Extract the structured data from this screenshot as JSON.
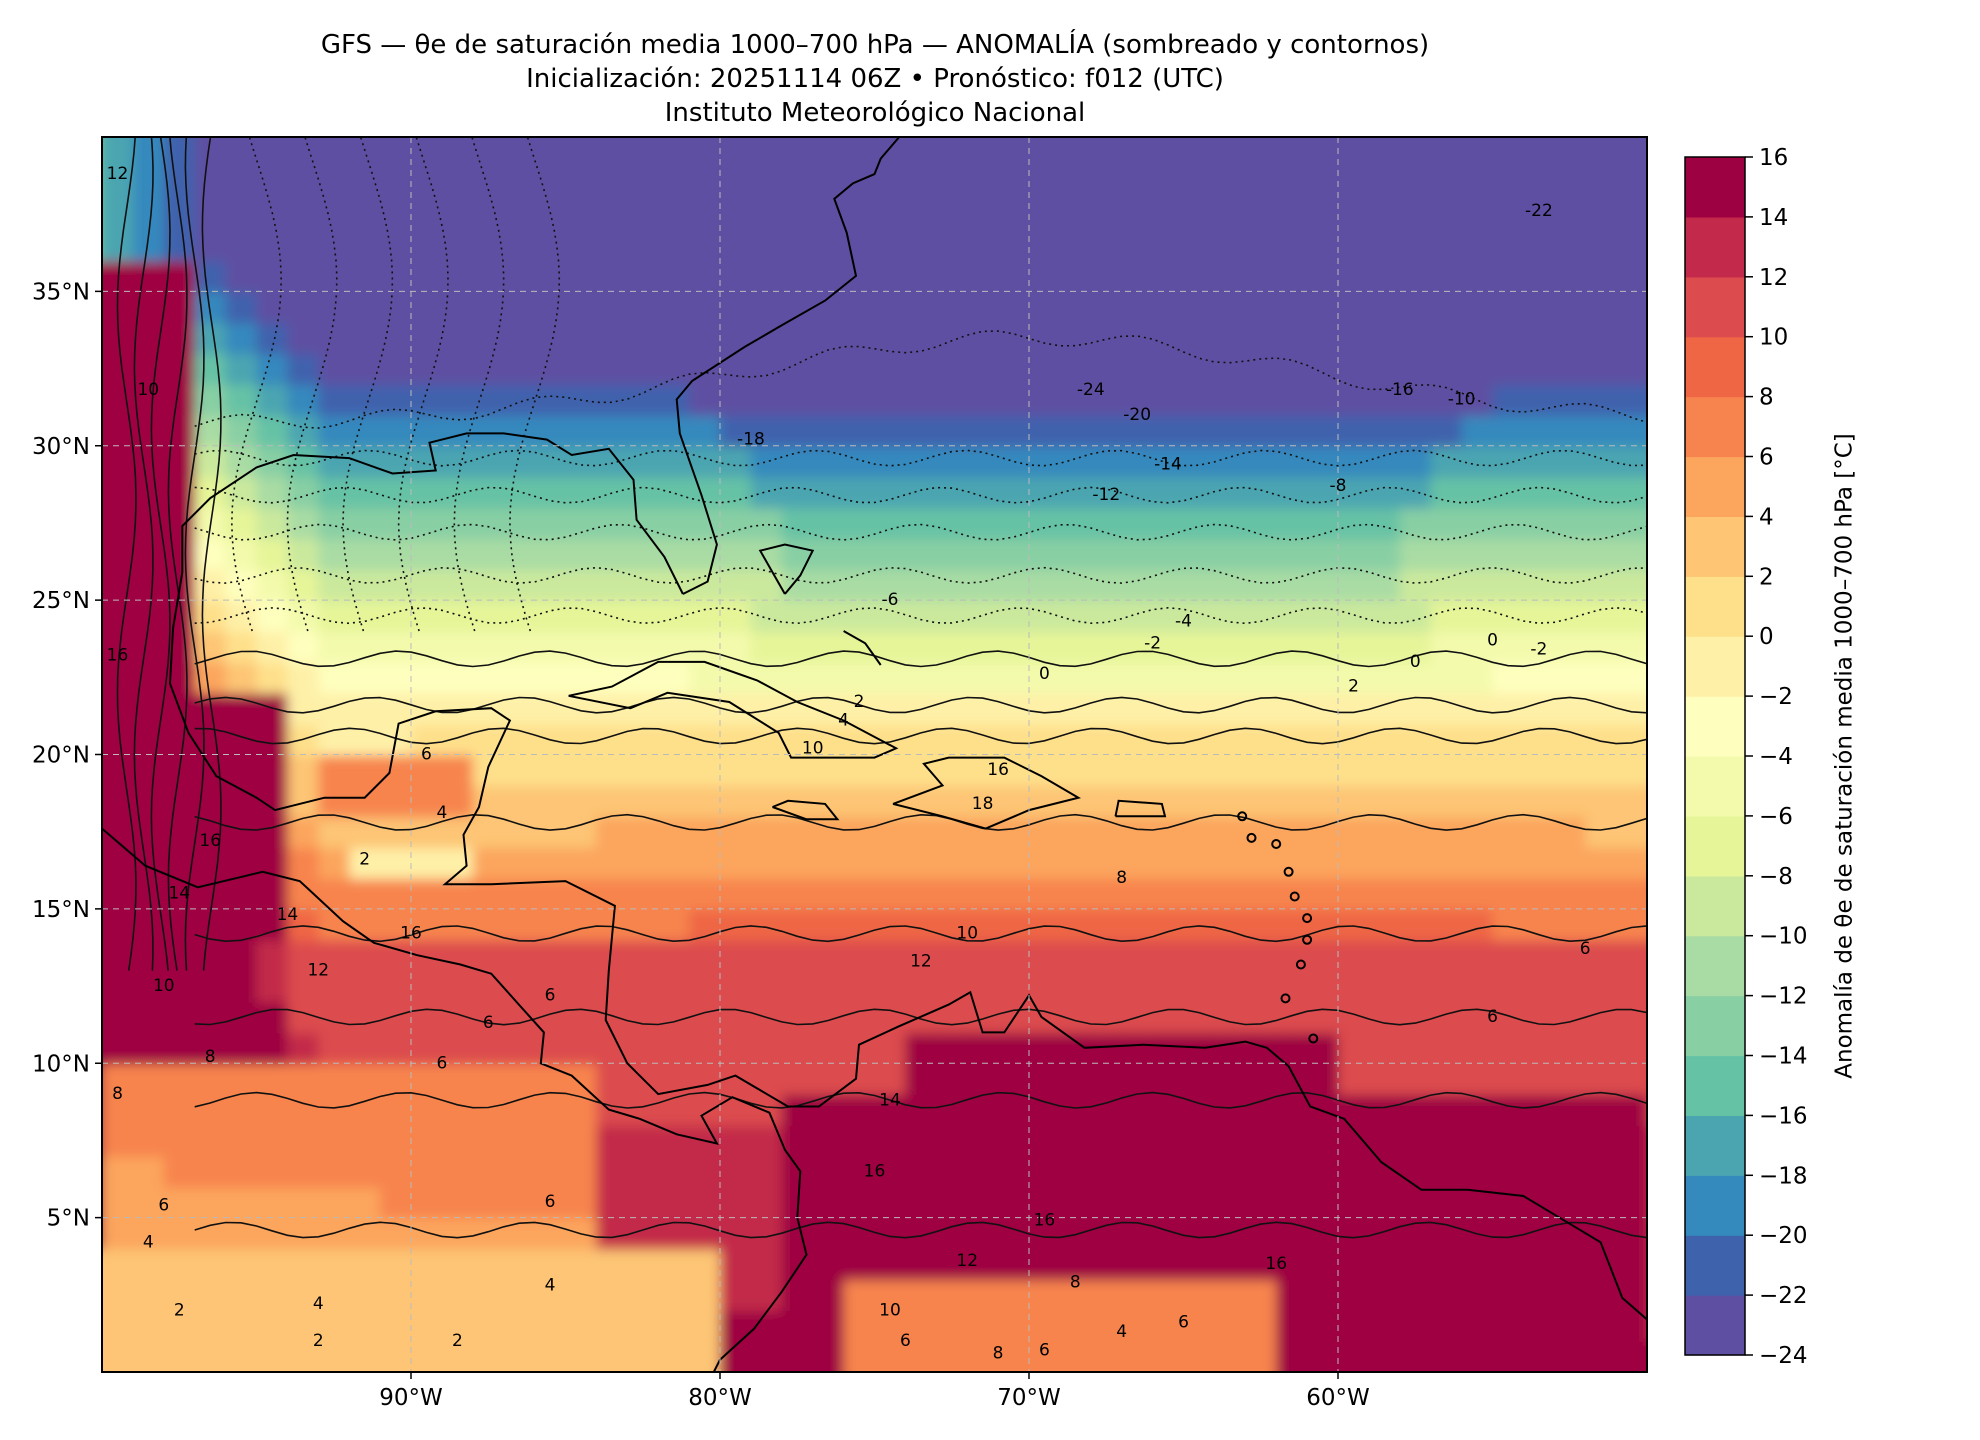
{
  "title": {
    "line1": "GFS — θe de saturación media 1000–700 hPa — ANOMALÍA (sombreado y contornos)",
    "line2": "Inicialización: 20251114 06Z   •   Pronóstico: f012 (UTC)",
    "line3": "Instituto Meteorológico Nacional"
  },
  "map": {
    "lon_range": [
      -100,
      -50
    ],
    "lat_range": [
      0,
      40
    ],
    "lon_ticks": [
      {
        "value": -90,
        "label": "90°W"
      },
      {
        "value": -80,
        "label": "80°W"
      },
      {
        "value": -70,
        "label": "70°W"
      },
      {
        "value": -60,
        "label": "60°W"
      }
    ],
    "lat_ticks": [
      {
        "value": 35,
        "label": "35°N"
      },
      {
        "value": 30,
        "label": "30°N"
      },
      {
        "value": 25,
        "label": "25°N"
      },
      {
        "value": 20,
        "label": "20°N"
      },
      {
        "value": 15,
        "label": "15°N"
      },
      {
        "value": 10,
        "label": "10°N"
      },
      {
        "value": 5,
        "label": "5°N"
      }
    ],
    "gridlines": true,
    "contour_labels": [
      {
        "text": "-24",
        "lon": -68,
        "lat": 31.8
      },
      {
        "text": "-22",
        "lon": -53.5,
        "lat": 37.6
      },
      {
        "text": "-20",
        "lon": -66.5,
        "lat": 31.0
      },
      {
        "text": "-18",
        "lon": -79,
        "lat": 30.2
      },
      {
        "text": "-16",
        "lon": -58,
        "lat": 31.8
      },
      {
        "text": "-14",
        "lon": -65.5,
        "lat": 29.4
      },
      {
        "text": "-12",
        "lon": -67.5,
        "lat": 28.4
      },
      {
        "text": "-10",
        "lon": -56,
        "lat": 31.5
      },
      {
        "text": "-8",
        "lon": -60,
        "lat": 28.7
      },
      {
        "text": "-6",
        "lon": -74.5,
        "lat": 25.0
      },
      {
        "text": "-4",
        "lon": -65,
        "lat": 24.3
      },
      {
        "text": "-2",
        "lon": -66,
        "lat": 23.6
      },
      {
        "text": "0",
        "lon": -69.5,
        "lat": 22.6
      },
      {
        "text": "0",
        "lon": -57.5,
        "lat": 23.0
      },
      {
        "text": "0",
        "lon": -55,
        "lat": 23.7
      },
      {
        "text": "-2",
        "lon": -53.5,
        "lat": 23.4
      },
      {
        "text": "2",
        "lon": -75.5,
        "lat": 21.7
      },
      {
        "text": "2",
        "lon": -59.5,
        "lat": 22.2
      },
      {
        "text": "4",
        "lon": -76,
        "lat": 21.1
      },
      {
        "text": "6",
        "lon": -89.5,
        "lat": 20.0
      },
      {
        "text": "4",
        "lon": -89,
        "lat": 18.1
      },
      {
        "text": "2",
        "lon": -91.5,
        "lat": 16.6
      },
      {
        "text": "10",
        "lon": -77,
        "lat": 20.2
      },
      {
        "text": "16",
        "lon": -71,
        "lat": 19.5
      },
      {
        "text": "18",
        "lon": -71.5,
        "lat": 18.4
      },
      {
        "text": "16",
        "lon": -96.5,
        "lat": 17.2
      },
      {
        "text": "8",
        "lon": -67,
        "lat": 16.0
      },
      {
        "text": "14",
        "lon": -97.5,
        "lat": 15.5
      },
      {
        "text": "14",
        "lon": -94,
        "lat": 14.8
      },
      {
        "text": "16",
        "lon": -90,
        "lat": 14.2
      },
      {
        "text": "12",
        "lon": -93,
        "lat": 13.0
      },
      {
        "text": "10",
        "lon": -72,
        "lat": 14.2
      },
      {
        "text": "12",
        "lon": -73.5,
        "lat": 13.3
      },
      {
        "text": "10",
        "lon": -98,
        "lat": 12.5
      },
      {
        "text": "6",
        "lon": -85.5,
        "lat": 12.2
      },
      {
        "text": "6",
        "lon": -87.5,
        "lat": 11.3
      },
      {
        "text": "8",
        "lon": -96.5,
        "lat": 10.2
      },
      {
        "text": "6",
        "lon": -89,
        "lat": 10.0
      },
      {
        "text": "6",
        "lon": -55,
        "lat": 11.5
      },
      {
        "text": "6",
        "lon": -52,
        "lat": 13.7
      },
      {
        "text": "8",
        "lon": -99.5,
        "lat": 9.0
      },
      {
        "text": "14",
        "lon": -74.5,
        "lat": 8.8
      },
      {
        "text": "16",
        "lon": -75,
        "lat": 6.5
      },
      {
        "text": "6",
        "lon": -98,
        "lat": 5.4
      },
      {
        "text": "6",
        "lon": -85.5,
        "lat": 5.5
      },
      {
        "text": "16",
        "lon": -69.5,
        "lat": 4.9
      },
      {
        "text": "4",
        "lon": -98.5,
        "lat": 4.2
      },
      {
        "text": "12",
        "lon": -72,
        "lat": 3.6
      },
      {
        "text": "16",
        "lon": -62,
        "lat": 3.5
      },
      {
        "text": "4",
        "lon": -85.5,
        "lat": 2.8
      },
      {
        "text": "4",
        "lon": -93,
        "lat": 2.2
      },
      {
        "text": "2",
        "lon": -97.5,
        "lat": 2.0
      },
      {
        "text": "8",
        "lon": -68.5,
        "lat": 2.9
      },
      {
        "text": "10",
        "lon": -74.5,
        "lat": 2.0
      },
      {
        "text": "4",
        "lon": -67,
        "lat": 1.3
      },
      {
        "text": "6",
        "lon": -65,
        "lat": 1.6
      },
      {
        "text": "6",
        "lon": -74,
        "lat": 1.0
      },
      {
        "text": "6",
        "lon": -69.5,
        "lat": 0.7
      },
      {
        "text": "8",
        "lon": -71,
        "lat": 0.6
      },
      {
        "text": "2",
        "lon": -88.5,
        "lat": 1.0
      },
      {
        "text": "2",
        "lon": -93,
        "lat": 1.0
      },
      {
        "text": "12",
        "lon": -99.5,
        "lat": 38.8
      },
      {
        "text": "10",
        "lon": -98.5,
        "lat": 31.8
      },
      {
        "text": "16",
        "lon": -99.5,
        "lat": 23.2
      }
    ]
  },
  "colorbar": {
    "label": "Anomalía de θe de saturación media 1000–700 hPa [°C]",
    "levels": [
      -24,
      -22,
      -20,
      -18,
      -16,
      -14,
      -12,
      -10,
      -8,
      -6,
      -4,
      -2,
      0,
      2,
      4,
      6,
      8,
      10,
      12,
      14,
      16
    ],
    "tick_labels": [
      "−24",
      "−22",
      "−20",
      "−18",
      "−16",
      "−14",
      "−12",
      "−10",
      "−8",
      "−6",
      "−4",
      "−2",
      "0",
      "2",
      "4",
      "6",
      "8",
      "10",
      "12",
      "14",
      "16"
    ],
    "colors": [
      "#5e4fa2",
      "#3f62ad",
      "#3489bd",
      "#4ba5b1",
      "#66c2a5",
      "#88cfa4",
      "#a9dca4",
      "#cbe99d",
      "#e6f598",
      "#f3faac",
      "#feffbe",
      "#fef0a7",
      "#fee08b",
      "#fdc574",
      "#fca55d",
      "#f7844e",
      "#ef6645",
      "#dc4b4e",
      "#c3294a",
      "#9e0142"
    ]
  }
}
